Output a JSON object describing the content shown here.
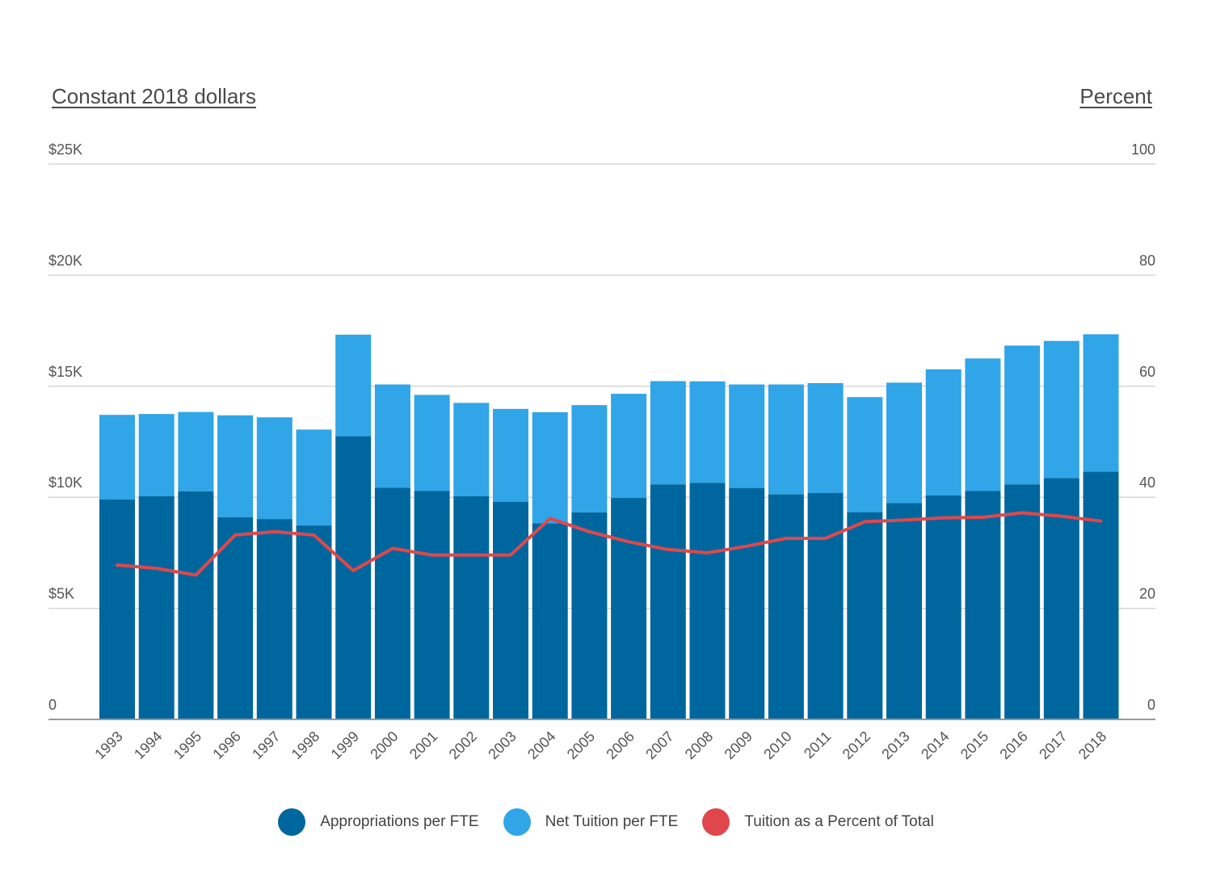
{
  "chart_data": {
    "type": "bar",
    "stacked": true,
    "left_axis_title": "Constant 2018 dollars",
    "right_axis_title": "Percent",
    "categories": [
      "1993",
      "1994",
      "1995",
      "1996",
      "1997",
      "1998",
      "1999",
      "2000",
      "2001",
      "2002",
      "2003",
      "2004",
      "2005",
      "2006",
      "2007",
      "2008",
      "2009",
      "2010",
      "2011",
      "2012",
      "2013",
      "2014",
      "2015",
      "2016",
      "2017",
      "2018"
    ],
    "series": [
      {
        "name": "Appropriations per FTE",
        "type": "bar",
        "axis": "left",
        "color": "#00679e",
        "values": [
          9900,
          10050,
          10270,
          9100,
          9020,
          8730,
          12750,
          10430,
          10280,
          10050,
          9800,
          8830,
          9320,
          9970,
          10580,
          10650,
          10420,
          10130,
          10190,
          9330,
          9740,
          10080,
          10280,
          10580,
          10860,
          11150
        ]
      },
      {
        "name": "Net Tuition per FTE",
        "type": "bar",
        "axis": "left",
        "color": "#30a5e7",
        "values": [
          3810,
          3700,
          3570,
          4590,
          4580,
          4320,
          4570,
          4650,
          4330,
          4200,
          4180,
          5000,
          4830,
          4690,
          4650,
          4570,
          4660,
          4950,
          4950,
          5180,
          5420,
          5680,
          5970,
          6250,
          6180,
          6190
        ]
      },
      {
        "name": "Tuition as a Percent of Total",
        "type": "line",
        "axis": "right",
        "color": "#e0474c",
        "values": [
          27.8,
          27.2,
          26.0,
          33.2,
          33.8,
          33.2,
          26.8,
          30.8,
          29.6,
          29.6,
          29.6,
          36.2,
          33.8,
          32.0,
          30.6,
          30.0,
          31.2,
          32.6,
          32.6,
          35.6,
          35.9,
          36.3,
          36.4,
          37.2,
          36.6,
          35.7
        ]
      }
    ],
    "left_axis": {
      "min": 0,
      "max": 25000,
      "ticks": [
        0,
        5000,
        10000,
        15000,
        20000,
        25000
      ],
      "tick_labels": [
        "0",
        "$5K",
        "$10K",
        "$15K",
        "$20K",
        "$25K"
      ]
    },
    "right_axis": {
      "min": 0,
      "max": 100,
      "ticks": [
        0,
        20,
        40,
        60,
        80,
        100
      ],
      "tick_labels": [
        "0",
        "20",
        "40",
        "60",
        "80",
        "100"
      ]
    },
    "grid": true,
    "legend_position": "bottom"
  }
}
